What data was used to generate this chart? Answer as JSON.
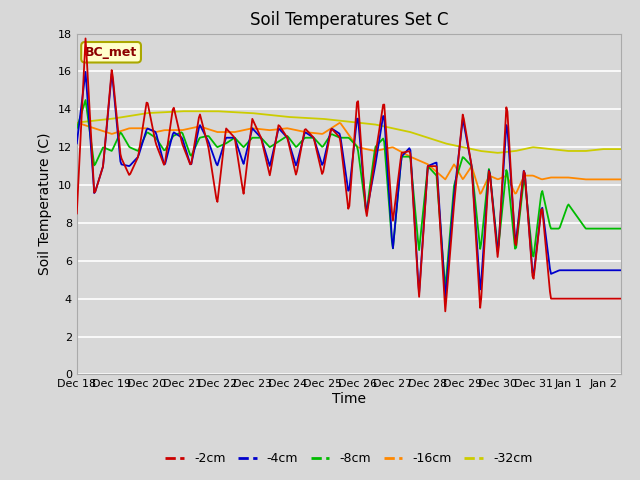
{
  "title": "Soil Temperatures Set C",
  "xlabel": "Time",
  "ylabel": "Soil Temperature (C)",
  "annotation": "BC_met",
  "ylim": [
    0,
    18
  ],
  "yticks": [
    0,
    2,
    4,
    6,
    8,
    10,
    12,
    14,
    16,
    18
  ],
  "colors": {
    "-2cm": "#cc0000",
    "-4cm": "#0000cc",
    "-8cm": "#00bb00",
    "-16cm": "#ff8800",
    "-32cm": "#cccc00"
  },
  "plot_bg_color": "#d8d8d8",
  "grid_color": "#ffffff",
  "xtick_labels": [
    "Dec 18",
    "Dec 19",
    "Dec 20",
    "Dec 21",
    "Dec 22",
    "Dec 23",
    "Dec 24",
    "Dec 25",
    "Dec 26",
    "Dec 27",
    "Dec 28",
    "Dec 29",
    "Dec 30",
    "Dec 31",
    "Jan 1",
    "Jan 2"
  ]
}
